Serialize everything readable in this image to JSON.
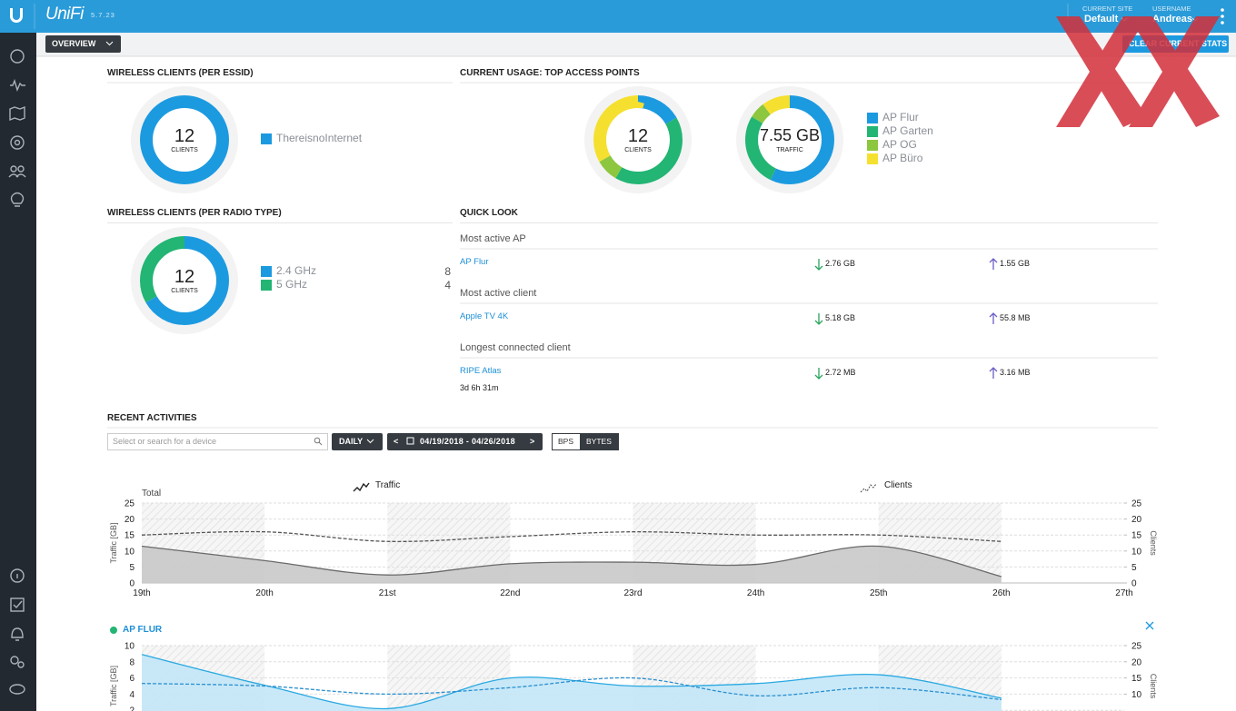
{
  "header": {
    "logo": "UniFi",
    "version": "5.7.23",
    "site_label": "CURRENT SITE",
    "site": "Default",
    "user_label": "USERNAME",
    "user": "Andreas"
  },
  "toolbar": {
    "view": "OVERVIEW",
    "clear": "CLEAR CURRENT STATS"
  },
  "essid": {
    "title": "WIRELESS CLIENTS (PER ESSID)",
    "total": 12,
    "label": "CLIENTS",
    "series": [
      {
        "name": "ThereisnoInternet",
        "color": "#1c9ae0",
        "value": 12
      }
    ]
  },
  "top_aps": {
    "title": "CURRENT USAGE: TOP ACCESS POINTS",
    "legend": [
      {
        "name": "AP Flur",
        "color": "#1c9ae0"
      },
      {
        "name": "AP Garten",
        "color": "#22b573"
      },
      {
        "name": "AP OG",
        "color": "#8dc63f"
      },
      {
        "name": "AP Büro",
        "color": "#f5e030"
      }
    ],
    "clients": {
      "total": 12,
      "label": "CLIENTS",
      "values": [
        2,
        5,
        1,
        4
      ]
    },
    "traffic": {
      "total": "7.55 GB",
      "label": "TRAFFIC",
      "values": [
        4.31,
        2.0,
        0.45,
        0.79
      ]
    }
  },
  "radio": {
    "title": "WIRELESS CLIENTS (PER RADIO TYPE)",
    "total": 12,
    "label": "CLIENTS",
    "series": [
      {
        "name": "2.4 GHz",
        "color": "#1c9ae0",
        "value": 8
      },
      {
        "name": "5 GHz",
        "color": "#22b573",
        "value": 4
      }
    ]
  },
  "quick_look": {
    "title": "QUICK LOOK",
    "sections": [
      {
        "heading": "Most active AP",
        "name": "AP Flur",
        "down": "2.76 GB",
        "up": "1.55 GB"
      },
      {
        "heading": "Most active client",
        "name": "Apple TV 4K",
        "down": "5.18 GB",
        "up": "55.8 MB"
      },
      {
        "heading": "Longest connected client",
        "name": "RIPE Atlas",
        "detail": "3d 6h 31m",
        "down": "2.72 MB",
        "up": "3.16 MB"
      }
    ]
  },
  "recent": {
    "title": "RECENT ACTIVITIES",
    "search_placeholder": "Select or search for a device",
    "interval": "DAILY",
    "prev": "<",
    "range": "04/19/2018 - 04/26/2018",
    "next": ">",
    "units": [
      "BPS",
      "BYTES"
    ],
    "legend": [
      "Traffic",
      "Clients"
    ],
    "charts": [
      {
        "type": "area",
        "title": "Total",
        "ylabel": "Traffic [GB]",
        "y2label": "Clients",
        "categories": [
          "19th",
          "20th",
          "21st",
          "22nd",
          "23rd",
          "24th",
          "25th",
          "26th",
          "27th"
        ],
        "ylim": [
          0,
          25
        ],
        "yticks": [
          0,
          5,
          10,
          15,
          20,
          25
        ],
        "y2lim": [
          0,
          25
        ],
        "y2ticks": [
          0,
          5,
          10,
          15,
          20,
          25
        ],
        "series": [
          {
            "color": "#6a6a6a",
            "fill": "#c9c9c9",
            "values": [
              11.5,
              7,
              2.5,
              6,
              6.5,
              5.8,
              11.5,
              2,
              null
            ]
          },
          {
            "color": "#555555",
            "axis": "y2",
            "dashed": true,
            "values": [
              15,
              16,
              13,
              14.5,
              16,
              15,
              15,
              13,
              null
            ]
          }
        ]
      },
      {
        "type": "area",
        "title": "AP FLUR",
        "ylabel": "Traffic [GB]",
        "y2label": "Clients",
        "ylim": [
          0,
          10
        ],
        "yticks": [
          2,
          4,
          6,
          8,
          10
        ],
        "y2lim": [
          0,
          25
        ],
        "y2ticks": [
          10,
          15,
          20,
          25
        ],
        "series": [
          {
            "color": "#29a8e0",
            "fill": "#c3e7f8",
            "values": [
              8.9,
              5.1,
              2.2,
              6,
              5,
              5.3,
              6.4,
              3.5,
              null
            ]
          },
          {
            "color": "#2a8fcf",
            "axis": "y2",
            "dashed": true,
            "values": [
              13.3,
              12.5,
              10,
              12,
              15,
              9.5,
              12,
              8.3,
              null
            ]
          }
        ]
      }
    ]
  }
}
